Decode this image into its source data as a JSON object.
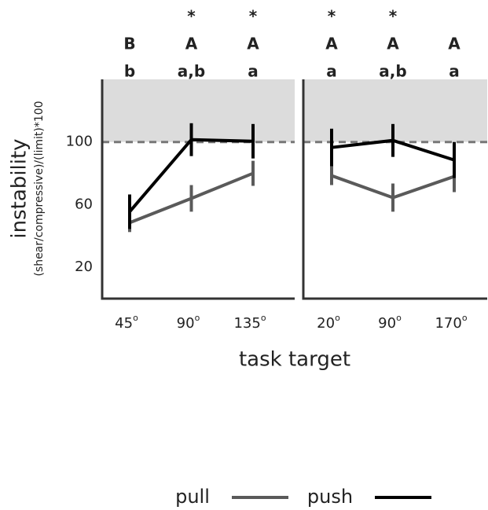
{
  "chart_data": [
    {
      "type": "line",
      "y_label": "instability",
      "y_sublabel": "(shear/compressive)/(limit)*100",
      "x_label": "task target",
      "categories": [
        "45",
        "90",
        "135"
      ],
      "category_suffix": "o",
      "series": [
        {
          "name": "pull",
          "color": "#5a5a5a",
          "values": [
            48.5,
            64,
            80
          ],
          "errors": [
            6,
            8.5,
            8
          ]
        },
        {
          "name": "push",
          "color": "#000000",
          "values": [
            55.5,
            101.5,
            100.5
          ],
          "errors": [
            11,
            10.5,
            11
          ]
        }
      ],
      "ylim": [
        0,
        140
      ],
      "yticks": [
        20,
        60,
        100
      ],
      "threshold": 100,
      "annotations": {
        "stars": [
          null,
          "*",
          "*"
        ],
        "upper": [
          "B",
          "A",
          "A"
        ],
        "lower": [
          "b",
          "a,b",
          "a"
        ]
      }
    },
    {
      "type": "line",
      "categories": [
        "20",
        "90",
        "170"
      ],
      "category_suffix": "o",
      "series": [
        {
          "color": "#5a5a5a",
          "values": [
            78.5,
            64.5,
            78
          ],
          "errors": [
            6,
            9,
            10
          ]
        },
        {
          "color": "#000000",
          "values": [
            96.5,
            101,
            88.5
          ],
          "errors": [
            12,
            10.5,
            11.5
          ]
        }
      ],
      "ylim": [
        0,
        140
      ],
      "threshold": 100,
      "annotations": {
        "stars": [
          "*",
          "*",
          null
        ],
        "upper": [
          "A",
          "A",
          "A"
        ],
        "lower": [
          "a",
          "a,b",
          "a"
        ]
      }
    }
  ]
}
